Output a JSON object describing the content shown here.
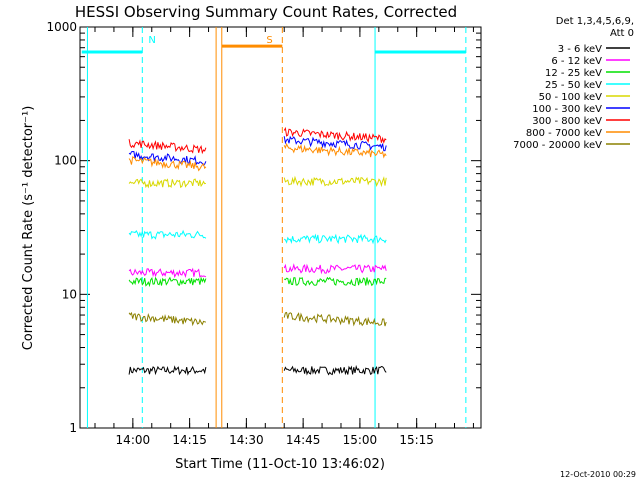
{
  "chart_data": {
    "type": "line",
    "title": "HESSI Observing Summary Count Rates, Corrected",
    "xlabel": "Start Time (11-Oct-10 13:46:02)",
    "ylabel": "Corrected Count Rate (s⁻¹ detector⁻¹)",
    "y_scale": "log",
    "ylim": [
      1,
      1000
    ],
    "xlim": [
      "13:46:02",
      "15:32:00"
    ],
    "x_ticks": [
      "14:00",
      "14:15",
      "14:30",
      "14:45",
      "15:00",
      "15:15"
    ],
    "y_ticks": [
      "1",
      "10",
      "100",
      "1000"
    ],
    "timestamp": "12-Oct-2010 00:29",
    "legend": {
      "position": "right",
      "header": [
        "Det 1,3,4,5,6,9,",
        "Att 0"
      ]
    },
    "series": [
      {
        "name": "3 - 6 keV",
        "color": "#000000",
        "segments": [
          {
            "x": [
              "13:59:00",
              "14:19:30"
            ],
            "level": 2.7
          },
          {
            "x": [
              "14:40:00",
              "15:07:00"
            ],
            "level": 2.7
          }
        ]
      },
      {
        "name": "6 - 12 keV",
        "color": "#ff00ff",
        "segments": [
          {
            "x": [
              "13:59:00",
              "14:19:30"
            ],
            "level": 14.5
          },
          {
            "x": [
              "14:40:00",
              "15:07:00"
            ],
            "level": 15.5
          }
        ]
      },
      {
        "name": "12 - 25 keV",
        "color": "#00e000",
        "segments": [
          {
            "x": [
              "13:59:00",
              "14:19:30"
            ],
            "level": 12.5
          },
          {
            "x": [
              "14:40:00",
              "15:07:00"
            ],
            "level": 12.5
          }
        ]
      },
      {
        "name": "25 - 50 keV",
        "color": "#00ffff",
        "segments": [
          {
            "x": [
              "13:59:00",
              "14:19:30"
            ],
            "level": 28
          },
          {
            "x": [
              "14:40:00",
              "15:07:00"
            ],
            "level": 26
          }
        ]
      },
      {
        "name": "50 - 100 keV",
        "color": "#d8d800",
        "segments": [
          {
            "x": [
              "13:59:00",
              "14:19:30"
            ],
            "level": 68
          },
          {
            "x": [
              "14:40:00",
              "15:07:00"
            ],
            "level": 70
          }
        ]
      },
      {
        "name": "100 - 300 keV",
        "color": "#0000ff",
        "segments": [
          {
            "x": [
              "13:59:00",
              "14:19:30"
            ],
            "level": 105
          },
          {
            "x": [
              "14:40:00",
              "15:07:00"
            ],
            "level": 135
          }
        ]
      },
      {
        "name": "300 - 800 keV",
        "color": "#ff0000",
        "segments": [
          {
            "x": [
              "13:59:00",
              "14:19:30"
            ],
            "level": 128
          },
          {
            "x": [
              "14:40:00",
              "15:07:00"
            ],
            "level": 155
          }
        ]
      },
      {
        "name": "800 - 7000 keV",
        "color": "#ff8c00",
        "segments": [
          {
            "x": [
              "13:59:00",
              "14:19:30"
            ],
            "level": 95
          },
          {
            "x": [
              "14:40:00",
              "15:07:00"
            ],
            "level": 118
          }
        ]
      },
      {
        "name": "7000 - 20000 keV",
        "color": "#8b8000",
        "segments": [
          {
            "x": [
              "13:59:00",
              "14:19:30"
            ],
            "level": 6.5
          },
          {
            "x": [
              "14:40:00",
              "15:07:00"
            ],
            "level": 6.5
          }
        ]
      }
    ],
    "flags": [
      {
        "label": "N",
        "color": "#00ffff",
        "level": 650,
        "bars": [
          [
            "13:46:30",
            "14:02:30"
          ],
          [
            "15:04:00",
            "15:28:00"
          ]
        ]
      },
      {
        "label": "S",
        "color": "#ff8c00",
        "level": 720,
        "bars": [
          [
            "14:23:30",
            "14:39:30"
          ]
        ]
      }
    ],
    "markers": [
      {
        "color": "#00ffff",
        "style": "solid",
        "x": "13:48:00"
      },
      {
        "color": "#00ffff",
        "style": "dashed",
        "x": "14:02:30"
      },
      {
        "color": "#ff8c00",
        "style": "solid",
        "x": "14:22:00"
      },
      {
        "color": "#ff8c00",
        "style": "solid",
        "x": "14:23:30"
      },
      {
        "color": "#ff8c00",
        "style": "dashed",
        "x": "14:39:30"
      },
      {
        "color": "#00ffff",
        "style": "solid",
        "x": "15:04:00"
      },
      {
        "color": "#00ffff",
        "style": "dashed",
        "x": "15:28:00"
      }
    ]
  }
}
